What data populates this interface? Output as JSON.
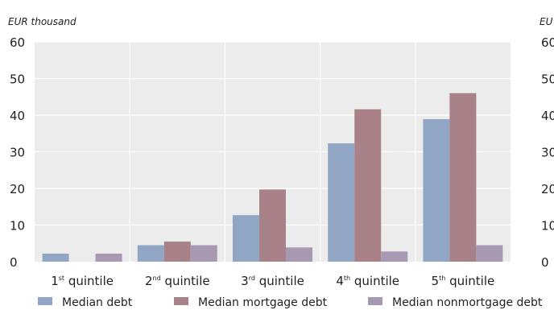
{
  "chart_data": {
    "type": "bar",
    "unit_label": "EUR thousand",
    "right_panel_unit_fragment": "EU",
    "right_panel_tick_fragments": [
      "60",
      "50",
      "40",
      "30",
      "20",
      "10",
      "0"
    ],
    "categories": [
      {
        "ordinal": "1",
        "suffix": "st",
        "word": "quintile"
      },
      {
        "ordinal": "2",
        "suffix": "nd",
        "word": "quintile"
      },
      {
        "ordinal": "3",
        "suffix": "rd",
        "word": "quintile"
      },
      {
        "ordinal": "4",
        "suffix": "th",
        "word": "quintile"
      },
      {
        "ordinal": "5",
        "suffix": "th",
        "word": "quintile"
      }
    ],
    "series": [
      {
        "name": "Median debt",
        "color": "#91a6c4",
        "values": [
          2.2,
          4.5,
          12.7,
          32.3,
          38.9
        ]
      },
      {
        "name": "Median mortgage debt",
        "color": "#a88288",
        "values": [
          0,
          5.5,
          19.7,
          41.6,
          46.0
        ]
      },
      {
        "name": "Median nonmortgage debt",
        "color": "#a899b3",
        "values": [
          2.2,
          4.5,
          3.9,
          2.8,
          4.5
        ]
      }
    ],
    "ylim": [
      0,
      60
    ],
    "yticks": [
      0,
      10,
      20,
      30,
      40,
      50,
      60
    ],
    "grid": true,
    "plot_background": "#ececec",
    "legend_position": "bottom"
  }
}
